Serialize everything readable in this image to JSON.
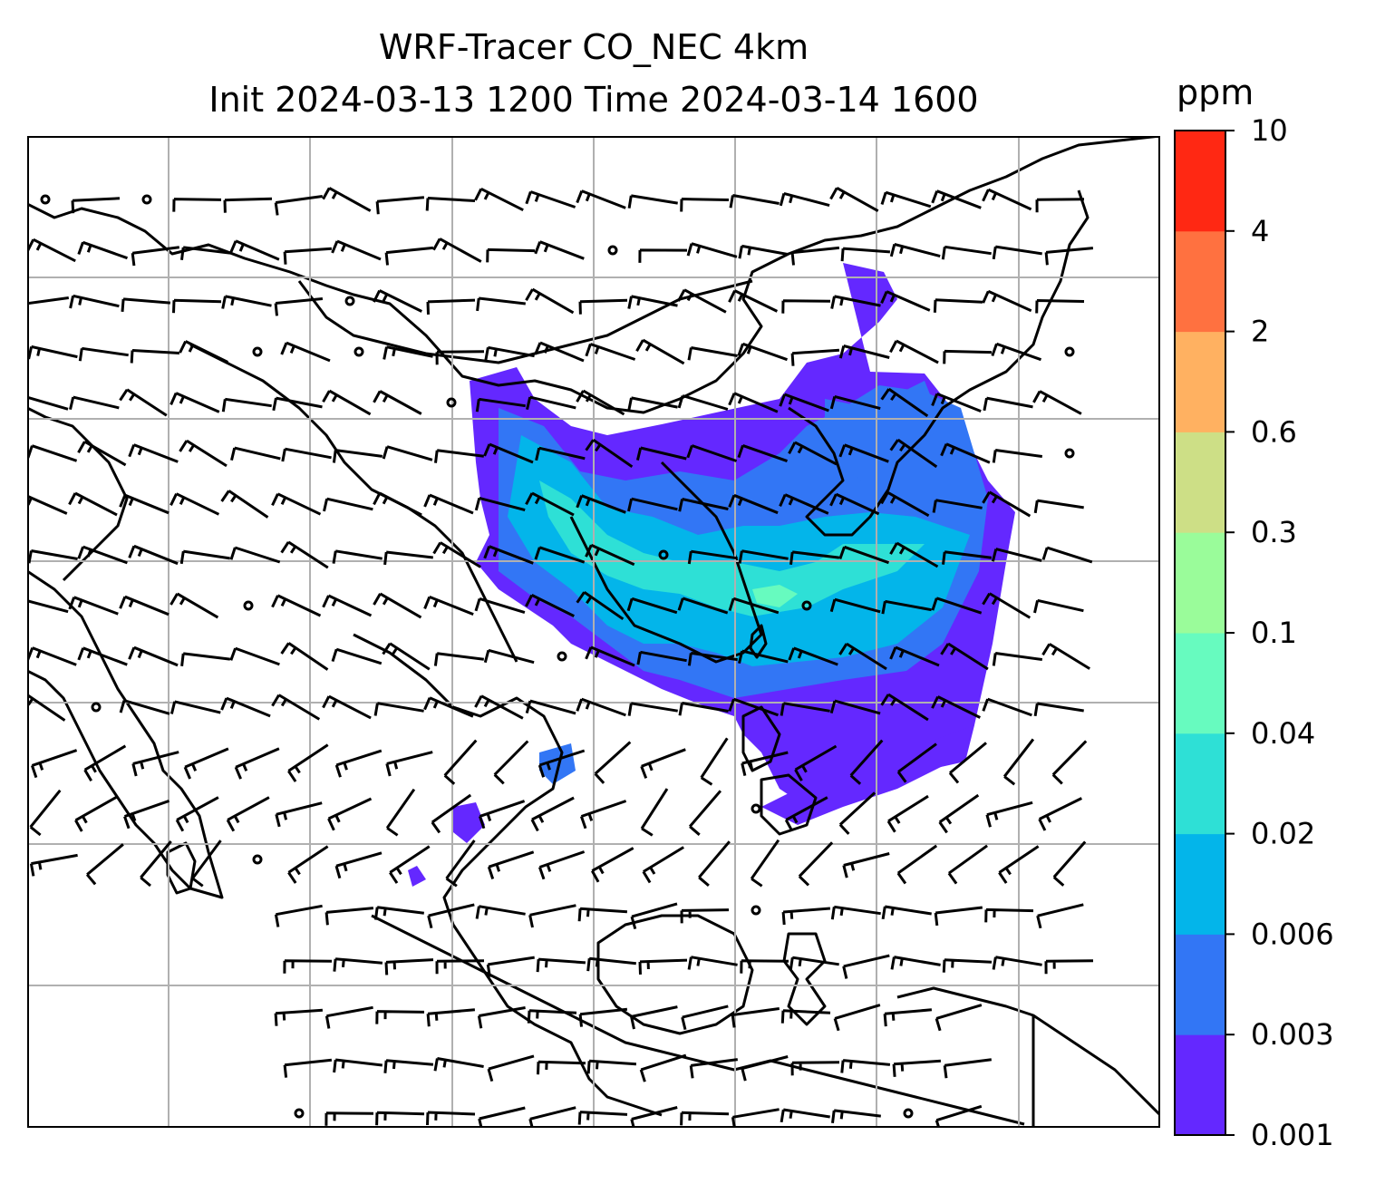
{
  "title": {
    "line1": "WRF-Tracer CO_NEC 4km",
    "line2": "Init 2024-03-13 1200 Time 2024-03-14 1600"
  },
  "colorbar": {
    "unit": "ppm",
    "levels": [
      "0.001",
      "0.003",
      "0.006",
      "0.02",
      "0.04",
      "0.1",
      "0.3",
      "0.6",
      "2",
      "4",
      "10"
    ],
    "colors": [
      "#6428ff",
      "#3276f5",
      "#03b5ea",
      "#2ee0d6",
      "#67fbbf",
      "#9afc9a",
      "#cddf86",
      "#ffb161",
      "#ff7140",
      "#ff2813"
    ]
  },
  "map": {
    "background": "#ffffff",
    "coastline_color": "#000000",
    "gridline_color": "#b0b0b0",
    "wind_barb_color": "#000000"
  }
}
